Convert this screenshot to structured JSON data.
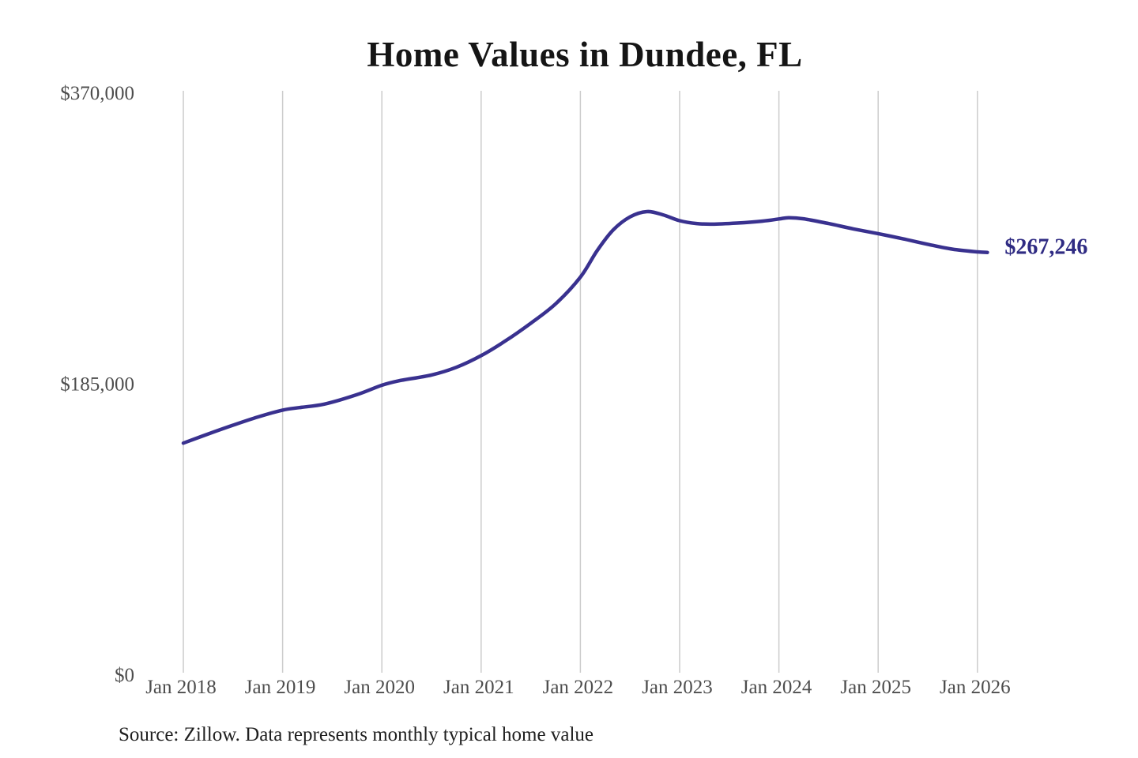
{
  "chart": {
    "title": "Home Values in Dundee, FL",
    "end_label": "$267,246",
    "source_note": "Source: Zillow. Data represents monthly typical home value"
  },
  "colors": {
    "background": "#ffffff",
    "line": "#39318f",
    "end_label_text": "#2f2b83",
    "grid": "#cccccc",
    "axis_text": "#4d4d4d",
    "title_text": "#151515",
    "source_text": "#1f1f1f"
  },
  "chart_data": {
    "type": "line",
    "title": "Home Values in Dundee, FL",
    "xlabel": "",
    "ylabel": "",
    "grid": "vertical-only",
    "legend": "none",
    "xlim": [
      2018,
      2026.1
    ],
    "ylim": [
      0,
      370000
    ],
    "x_ticks": {
      "values": [
        2018,
        2019,
        2020,
        2021,
        2022,
        2023,
        2024,
        2025,
        2026
      ],
      "labels": [
        "Jan 2018",
        "Jan 2019",
        "Jan 2020",
        "Jan 2021",
        "Jan 2022",
        "Jan 2023",
        "Jan 2024",
        "Jan 2025",
        "Jan 2026"
      ]
    },
    "y_ticks": {
      "values": [
        0,
        185000,
        370000
      ],
      "labels": [
        "$0",
        "$185,000",
        "$370,000"
      ]
    },
    "series": [
      {
        "name": "Monthly typical home value",
        "points": [
          [
            2018.0,
            146000
          ],
          [
            2018.25,
            151800
          ],
          [
            2018.5,
            157400
          ],
          [
            2018.75,
            162600
          ],
          [
            2019.0,
            167000
          ],
          [
            2019.17,
            168600
          ],
          [
            2019.42,
            170800
          ],
          [
            2019.75,
            176800
          ],
          [
            2020.0,
            182800
          ],
          [
            2020.17,
            185600
          ],
          [
            2020.5,
            189300
          ],
          [
            2020.75,
            194200
          ],
          [
            2021.0,
            201600
          ],
          [
            2021.25,
            211200
          ],
          [
            2021.5,
            222200
          ],
          [
            2021.75,
            234500
          ],
          [
            2022.0,
            251500
          ],
          [
            2022.17,
            268500
          ],
          [
            2022.33,
            281500
          ],
          [
            2022.5,
            289800
          ],
          [
            2022.67,
            293200
          ],
          [
            2022.83,
            291200
          ],
          [
            2023.0,
            287400
          ],
          [
            2023.17,
            285600
          ],
          [
            2023.33,
            285200
          ],
          [
            2023.58,
            285900
          ],
          [
            2023.83,
            287100
          ],
          [
            2024.0,
            288500
          ],
          [
            2024.1,
            289300
          ],
          [
            2024.25,
            288600
          ],
          [
            2024.5,
            285600
          ],
          [
            2024.75,
            282200
          ],
          [
            2025.0,
            279200
          ],
          [
            2025.25,
            275900
          ],
          [
            2025.5,
            272400
          ],
          [
            2025.75,
            269300
          ],
          [
            2026.0,
            267600
          ],
          [
            2026.1,
            267246
          ]
        ]
      }
    ],
    "annotations": [
      {
        "text": "$267,246",
        "value": 267246,
        "position": "line-end"
      }
    ],
    "source": "Source: Zillow. Data represents monthly typical home value"
  }
}
